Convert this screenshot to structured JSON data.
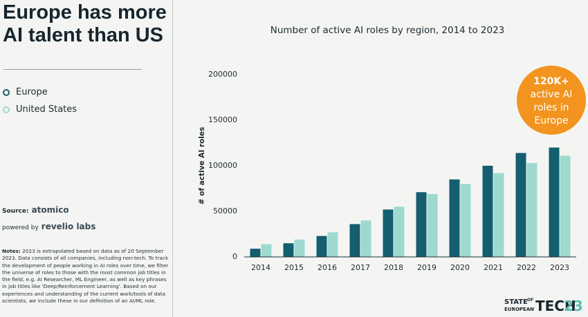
{
  "headline": [
    "Europe has more",
    "AI talent than US"
  ],
  "sidebar": {
    "source_label": "Source:",
    "source_logo": "atomico",
    "powered_label": "powered by",
    "powered_logo": "revelio labs",
    "notes_label": "Notes:",
    "notes_text": "2023 is extrapolated based on data as of 20 September 2023. Data consists of all companies, including non-tech. To track the development of people working in AI roles over time, we filter the universe of roles to those with the most common job titles in the field, e.g. AI Researcher, ML Engineer, as well as key phrases in job titles like 'Deep/Reinforcement Learning'. Based on our experiences and understanding of the current work/tools of data scientists, we include these in our definition of an AI/ML role."
  },
  "footer": {
    "state": "STATE",
    "of": "OF",
    "european": "EUROPEAN",
    "tech": "TECH",
    "year": "23"
  },
  "chart_data": {
    "type": "bar",
    "title": "Number of active AI roles by region, 2014 to 2023",
    "y_label": "# of active AI roles",
    "categories": [
      "2014",
      "2015",
      "2016",
      "2017",
      "2018",
      "2019",
      "2020",
      "2021",
      "2022",
      "2023"
    ],
    "series": [
      {
        "name": "Europe",
        "color": "#155e70",
        "values": [
          9000,
          15000,
          23000,
          36000,
          52000,
          71000,
          85000,
          100000,
          114000,
          120000
        ]
      },
      {
        "name": "United States",
        "color": "#9ed9cf",
        "values": [
          14000,
          19000,
          27000,
          40000,
          55000,
          69000,
          80000,
          92000,
          103000,
          111000
        ]
      }
    ],
    "ylim": [
      0,
      200000
    ],
    "yticks": [
      0,
      50000,
      100000,
      150000,
      200000
    ],
    "annotation": {
      "lines": [
        "120K+",
        "active AI",
        "roles in",
        "Europe"
      ],
      "color": "#f2941f"
    }
  }
}
